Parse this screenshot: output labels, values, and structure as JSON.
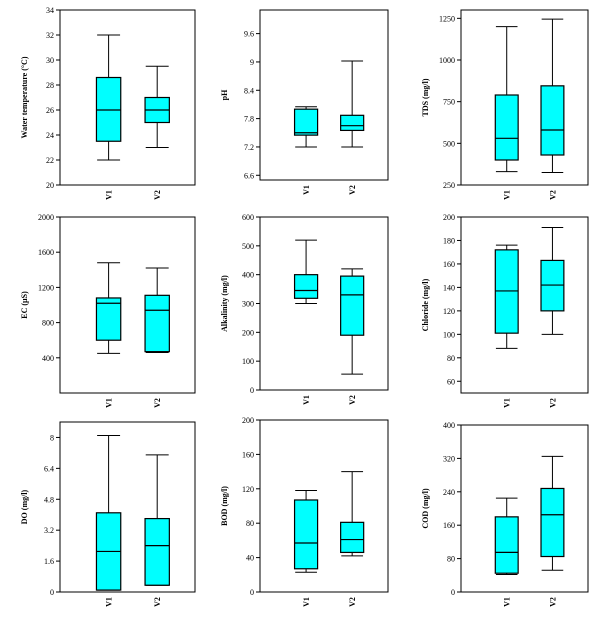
{
  "colors": {
    "box_fill": "#00ffff",
    "stroke": "#000000",
    "background": "#ffffff"
  },
  "chart_data": [
    {
      "type": "boxplot",
      "ylabel": "Water temperature (°C)",
      "categories": [
        "V1",
        "V2"
      ],
      "ylim": [
        20,
        34
      ],
      "yticks": [
        20,
        22,
        24,
        26,
        28,
        30,
        32,
        34
      ],
      "boxes": [
        {
          "min": 22,
          "q1": 23.5,
          "median": 26,
          "q3": 28.6,
          "max": 32
        },
        {
          "min": 23,
          "q1": 25,
          "median": 26,
          "q3": 27,
          "max": 29.5
        }
      ]
    },
    {
      "type": "boxplot",
      "ylabel": "pH",
      "categories": [
        "V1",
        "V2"
      ],
      "ylim": [
        6.5,
        10.1
      ],
      "yticks": [
        6.6,
        7.2,
        7.8,
        8.4,
        9.0,
        9.6
      ],
      "boxes": [
        {
          "min": 7.2,
          "q1": 7.45,
          "median": 7.5,
          "q3": 8.0,
          "max": 8.05
        },
        {
          "min": 7.2,
          "q1": 7.55,
          "median": 7.65,
          "q3": 7.87,
          "max": 9.02
        }
      ]
    },
    {
      "type": "boxplot",
      "ylabel": "TDS (mg/l)",
      "categories": [
        "V1",
        "V2"
      ],
      "ylim": [
        250,
        1300
      ],
      "yticks": [
        250,
        500,
        750,
        1000,
        1250
      ],
      "boxes": [
        {
          "min": 330,
          "q1": 400,
          "median": 530,
          "q3": 790,
          "max": 1200
        },
        {
          "min": 325,
          "q1": 430,
          "median": 580,
          "q3": 845,
          "max": 1245
        }
      ]
    },
    {
      "type": "boxplot",
      "ylabel": "EC (µS)",
      "categories": [
        "V1",
        "V2"
      ],
      "ylim": [
        0,
        2000
      ],
      "yticks": [
        400,
        800,
        1200,
        1600,
        2000
      ],
      "boxes": [
        {
          "min": 450,
          "q1": 600,
          "median": 1020,
          "q3": 1080,
          "max": 1480
        },
        {
          "min": 460,
          "q1": 470,
          "median": 940,
          "q3": 1110,
          "max": 1420
        }
      ]
    },
    {
      "type": "boxplot",
      "ylabel": "Alkalinity (mg/l)",
      "categories": [
        "V1",
        "V2"
      ],
      "ylim": [
        0,
        600
      ],
      "yticks": [
        0,
        100,
        200,
        300,
        400,
        500,
        600
      ],
      "boxes": [
        {
          "min": 300,
          "q1": 318,
          "median": 345,
          "q3": 400,
          "max": 520
        },
        {
          "min": 55,
          "q1": 190,
          "median": 330,
          "q3": 395,
          "max": 420
        }
      ]
    },
    {
      "type": "boxplot",
      "ylabel": "Chloride (mg/l)",
      "categories": [
        "V1",
        "V2"
      ],
      "ylim": [
        50,
        200
      ],
      "yticks": [
        60,
        80,
        100,
        120,
        140,
        160,
        180,
        200
      ],
      "boxes": [
        {
          "min": 88,
          "q1": 101,
          "median": 137,
          "q3": 172,
          "max": 176
        },
        {
          "min": 100,
          "q1": 120,
          "median": 142,
          "q3": 163,
          "max": 191
        }
      ]
    },
    {
      "type": "boxplot",
      "ylabel": "DO (mg/l)",
      "categories": [
        "V1",
        "V2"
      ],
      "ylim": [
        0,
        8.8
      ],
      "yticks": [
        0.0,
        1.6,
        3.2,
        4.8,
        6.4,
        8.0
      ],
      "boxes": [
        {
          "min": 0.1,
          "q1": 0.1,
          "median": 2.1,
          "q3": 4.1,
          "max": 8.1
        },
        {
          "min": 0.35,
          "q1": 0.35,
          "median": 2.4,
          "q3": 3.8,
          "max": 7.1
        }
      ]
    },
    {
      "type": "boxplot",
      "ylabel": "BOD (mg/l)",
      "categories": [
        "V1",
        "V2"
      ],
      "ylim": [
        0,
        200
      ],
      "yticks": [
        0,
        40,
        80,
        120,
        160,
        200
      ],
      "boxes": [
        {
          "min": 23,
          "q1": 27,
          "median": 57,
          "q3": 107,
          "max": 118
        },
        {
          "min": 42,
          "q1": 46,
          "median": 61,
          "q3": 81,
          "max": 140
        }
      ]
    },
    {
      "type": "boxplot",
      "ylabel": "COD (mg/l)",
      "categories": [
        "V1",
        "V2"
      ],
      "ylim": [
        0,
        400
      ],
      "yticks": [
        0,
        80,
        160,
        240,
        320,
        400
      ],
      "boxes": [
        {
          "min": 42,
          "q1": 45,
          "median": 95,
          "q3": 180,
          "max": 225
        },
        {
          "min": 52,
          "q1": 85,
          "median": 185,
          "q3": 248,
          "max": 325
        }
      ]
    }
  ]
}
